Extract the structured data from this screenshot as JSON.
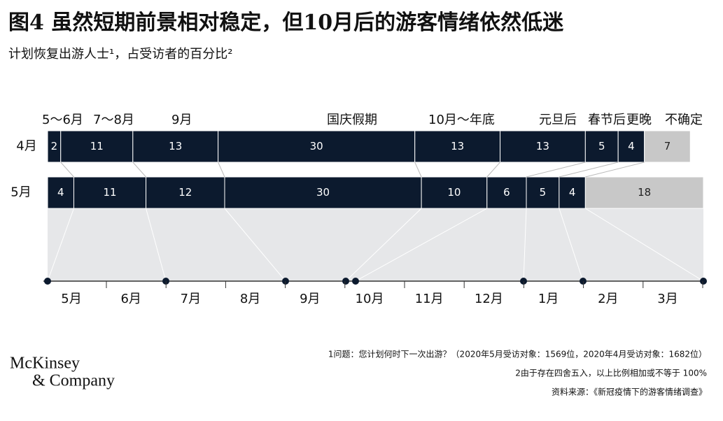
{
  "chart_data": {
    "type": "stacked-bar-horizontal",
    "title": "图4 虽然短期前景相对稳定，但10月后的游客情绪依然低迷",
    "subtitle": "计划恢复出游人士¹，占受访者的百分比²",
    "categories": [
      "4月",
      "5月"
    ],
    "series": [
      {
        "name": "5～6月",
        "color": "#0c1a2e",
        "values": [
          2,
          4
        ]
      },
      {
        "name": "7～8月",
        "color": "#0c1a2e",
        "values": [
          11,
          11
        ]
      },
      {
        "name": "9月",
        "color": "#0c1a2e",
        "values": [
          13,
          12
        ]
      },
      {
        "name": "国庆假期",
        "color": "#0c1a2e",
        "values": [
          30,
          30
        ]
      },
      {
        "name": "10月～年底",
        "color": "#0c1a2e",
        "values": [
          13,
          10
        ]
      },
      {
        "name": "元旦后",
        "color": "#0c1a2e",
        "values": [
          13,
          6
        ]
      },
      {
        "name": "春节后",
        "color": "#0c1a2e",
        "values": [
          5,
          5
        ]
      },
      {
        "name": "更晚",
        "color": "#0c1a2e",
        "values": [
          4,
          4
        ]
      },
      {
        "name": "不确定",
        "color": "#c8c8c8",
        "values": [
          7,
          18
        ]
      }
    ],
    "xlim": [
      0,
      100
    ],
    "timeline": [
      "5月",
      "6月",
      "7月",
      "8月",
      "9月",
      "10月",
      "11月",
      "12月",
      "1月",
      "2月",
      "3月"
    ],
    "notes": [
      "1问题：您计划何时下一次出游？（2020年5月受访对象：1569位，2020年4月受访对象：1682位）",
      "2由于存在四舍五入，以上比例相加或不等于 100%",
      "资料来源：《新冠疫情下的游客情绪调查》"
    ],
    "logo": [
      "McKinsey",
      "& Company"
    ]
  }
}
